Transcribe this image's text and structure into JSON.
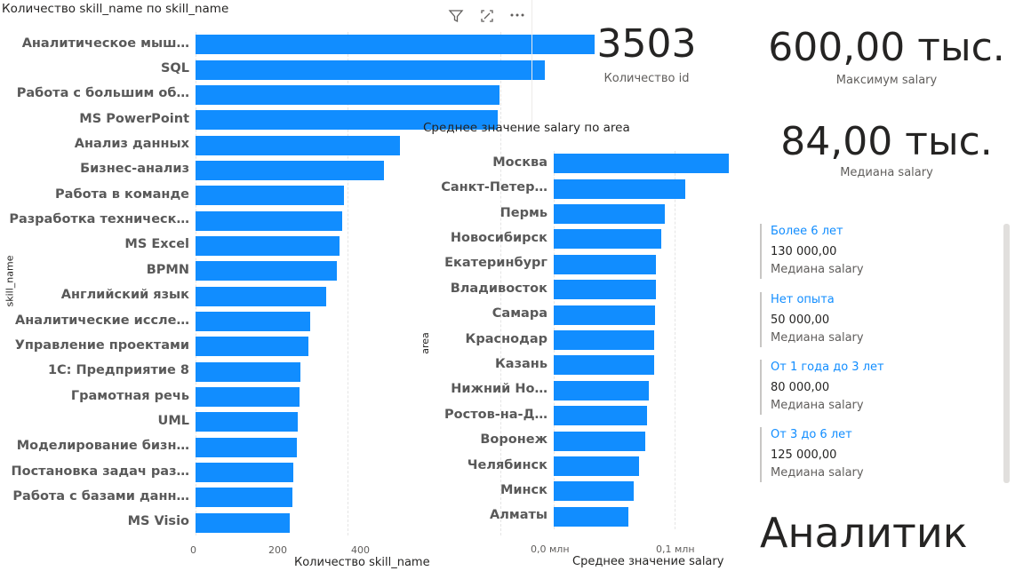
{
  "skills_chart": {
    "title": "Количество skill_name по skill_name",
    "y_axis_title": "skill_name",
    "x_axis_title": "Количество skill_name",
    "x_ticks": [
      "0",
      "200",
      "400"
    ]
  },
  "area_chart": {
    "title": "Среднее значение salary по area",
    "y_axis_title": "area",
    "x_axis_title": "Среднее значение salary",
    "x_ticks": [
      "0,0 млн",
      "0,1 млн"
    ]
  },
  "kpis": {
    "count_id": {
      "value": "3503",
      "label": "Количество id"
    },
    "max_salary": {
      "value": "600,00 тыс.",
      "label": "Максимум salary"
    },
    "median_salary": {
      "value": "84,00 тыс.",
      "label": "Медиана salary"
    }
  },
  "experience_cards": [
    {
      "category": "Более 6 лет",
      "value": "130 000,00",
      "label": "Медиана salary"
    },
    {
      "category": "Нет опыта",
      "value": "50 000,00",
      "label": "Медиана salary"
    },
    {
      "category": "От 1 года до 3 лет",
      "value": "80 000,00",
      "label": "Медиана salary"
    },
    {
      "category": "От 3 до 6 лет",
      "value": "125 000,00",
      "label": "Медиана salary"
    }
  ],
  "job_title": "Аналитик",
  "colors": {
    "bar": "#118dff",
    "accent": "#118dff"
  },
  "icons": [
    "filter-icon",
    "focus-mode-icon",
    "more-options-icon"
  ],
  "chart_data": [
    {
      "type": "bar",
      "orientation": "horizontal",
      "title": "Количество skill_name по skill_name",
      "xlabel": "Количество skill_name",
      "ylabel": "skill_name",
      "xlim": [
        0,
        560
      ],
      "categories": [
        "Аналитическое мыш…",
        "SQL",
        "Работа с большим об…",
        "MS PowerPoint",
        "Анализ данных",
        "Бизнес-анализ",
        "Работа в команде",
        "Разработка техническ…",
        "MS Excel",
        "BPMN",
        "Английский язык",
        "Аналитические иссле…",
        "Управление проектами",
        "1С: Предприятие 8",
        "Грамотная речь",
        "UML",
        "Моделирование бизн…",
        "Постановка задач раз…",
        "Работа с базами данн…",
        "MS Visio"
      ],
      "values": [
        524,
        458,
        399,
        397,
        268,
        247,
        195,
        193,
        189,
        185,
        172,
        150,
        148,
        138,
        136,
        134,
        133,
        128,
        127,
        124
      ]
    },
    {
      "type": "bar",
      "orientation": "horizontal",
      "title": "Среднее значение salary по area",
      "xlabel": "Среднее значение salary",
      "ylabel": "area",
      "xlim": [
        0,
        0.19
      ],
      "categories": [
        "Москва",
        "Санкт-Петер…",
        "Пермь",
        "Новосибирск",
        "Екатеринбург",
        "Владивосток",
        "Самара",
        "Краснодар",
        "Казань",
        "Нижний Но…",
        "Ростов-на-Д…",
        "Воронеж",
        "Челябинск",
        "Минск",
        "Алматы"
      ],
      "values": [
        0.145,
        0.109,
        0.092,
        0.089,
        0.085,
        0.085,
        0.084,
        0.083,
        0.083,
        0.079,
        0.077,
        0.076,
        0.071,
        0.066,
        0.062
      ]
    }
  ]
}
